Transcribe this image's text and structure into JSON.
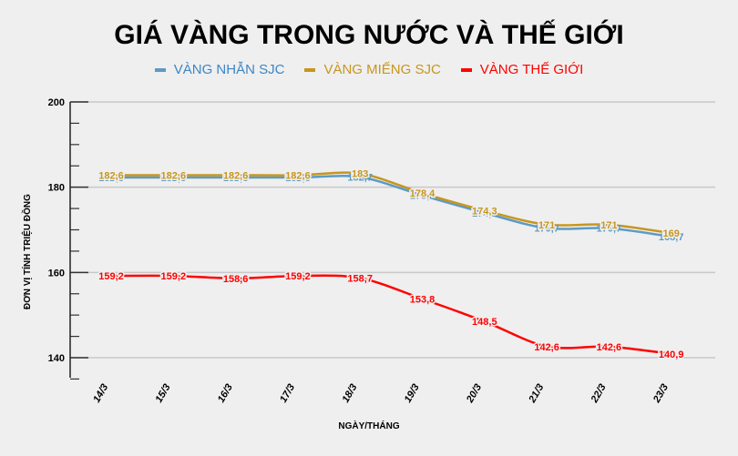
{
  "header": {
    "title": "GIÁ VÀNG TRONG NƯỚC VÀ THẾ GIỚI"
  },
  "legend": [
    {
      "label": "VÀNG NHẪN SJC",
      "color": "#4a8fc4"
    },
    {
      "label": "VÀNG MIẾNG SJC",
      "color": "#c8961e"
    },
    {
      "label": "VÀNG THẾ GIỚI",
      "color": "#ff0000"
    }
  ],
  "axes": {
    "ylabel": "ĐƠN VỊ TÍNH TRIỆU ĐỒNG",
    "xlabel": "NGÀY/THÁNG"
  },
  "chart_data": {
    "type": "line",
    "title": "GIÁ VÀNG TRONG NƯỚC VÀ THẾ GIỚI",
    "xlabel": "NGÀY/THÁNG",
    "ylabel": "ĐƠN VỊ TÍNH TRIỆU ĐỒNG",
    "categories": [
      "14/3",
      "15/3",
      "16/3",
      "17/3",
      "18/3",
      "19/3",
      "20/3",
      "21/3",
      "22/3",
      "23/3"
    ],
    "yticks": [
      140,
      160,
      180,
      200
    ],
    "ylim": [
      140,
      200
    ],
    "grid": true,
    "legend_position": "top",
    "series": [
      {
        "name": "VÀNG NHẪN SJC",
        "color": "#5b9bc4",
        "values": [
          182.6,
          182.6,
          182.6,
          182.6,
          182.7,
          178.4,
          174.3,
          170.7,
          170.7,
          168.7
        ],
        "labels": [
          "182,6",
          "182,6",
          "182,6",
          "182,6",
          "182,7",
          "178,4",
          "174,3",
          "170,7",
          "170,7",
          "168,7"
        ]
      },
      {
        "name": "VÀNG MIẾNG SJC",
        "color": "#c8961e",
        "values": [
          182.6,
          182.6,
          182.6,
          182.6,
          183,
          178.4,
          174.3,
          171,
          171,
          169
        ],
        "labels": [
          "182,6",
          "182,6",
          "182,6",
          "182,6",
          "183",
          "178,4",
          "174,3",
          "171",
          "171",
          "169"
        ]
      },
      {
        "name": "VÀNG THẾ GIỚI",
        "color": "#ff0000",
        "values": [
          159.2,
          159.2,
          158.6,
          159.2,
          158.7,
          153.8,
          148.5,
          142.6,
          142.6,
          140.9
        ],
        "labels": [
          "159,2",
          "159,2",
          "158,6",
          "159,2",
          "158,7",
          "153,8",
          "148,5",
          "142,6",
          "142,6",
          "140,9"
        ]
      }
    ]
  }
}
